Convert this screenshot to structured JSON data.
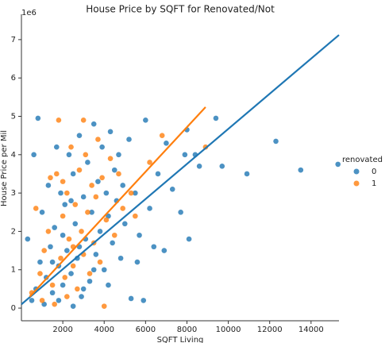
{
  "chart_data": {
    "type": "scatter",
    "title": "House Price by SQFT for Renovated/Not",
    "x_label": "SQFT Living",
    "y_label": "House Price per Mil",
    "y_offset_label": "1e6",
    "legend_title": "renovated",
    "legend_position": "right",
    "xlim": [
      0,
      15350
    ],
    "ylim": [
      -0.33,
      7.66
    ],
    "xticks": [
      2000,
      4000,
      6000,
      8000,
      10000,
      12000,
      14000
    ],
    "yticks": [
      0,
      1,
      2,
      3,
      4,
      5,
      6,
      7
    ],
    "series": [
      {
        "name": "0",
        "color": "#1f77b4",
        "x": [
          500,
          700,
          900,
          1000,
          1200,
          1300,
          1400,
          1500,
          1600,
          1700,
          1800,
          1900,
          2000,
          2100,
          2200,
          2300,
          2400,
          2500,
          2600,
          2700,
          2800,
          2900,
          3000,
          3100,
          3200,
          3300,
          3400,
          3500,
          3600,
          3700,
          3800,
          3900,
          4000,
          4100,
          4200,
          4300,
          4400,
          4500,
          4600,
          4700,
          4800,
          4900,
          5000,
          5200,
          5300,
          5500,
          5700,
          5900,
          6000,
          6200,
          6400,
          6600,
          6900,
          7000,
          7300,
          7700,
          7900,
          8000,
          8100,
          8400,
          8600,
          9400,
          9700,
          10900,
          12300,
          13500,
          15300,
          800,
          600,
          300,
          1100,
          2500,
          1800,
          3000,
          3500,
          2000,
          2400,
          1500,
          2800,
          4200,
          5600
        ],
        "values": [
          0.2,
          0.5,
          1.2,
          2.5,
          0.8,
          3.2,
          1.6,
          0.4,
          2.1,
          4.2,
          1.1,
          3.0,
          0.6,
          2.7,
          1.5,
          4.0,
          0.9,
          3.5,
          2.2,
          1.3,
          4.5,
          0.3,
          2.9,
          1.8,
          3.8,
          0.7,
          2.5,
          4.8,
          1.4,
          3.3,
          2.0,
          4.2,
          1.0,
          3.0,
          2.4,
          4.6,
          1.7,
          3.6,
          2.8,
          4.0,
          1.3,
          3.2,
          2.2,
          4.4,
          0.25,
          3.0,
          1.9,
          0.2,
          4.9,
          2.6,
          1.6,
          3.5,
          1.5,
          4.3,
          3.1,
          2.5,
          4.0,
          4.65,
          1.8,
          4.0,
          3.7,
          4.95,
          3.7,
          3.5,
          4.35,
          3.6,
          3.75,
          4.95,
          4.0,
          1.8,
          0.1,
          0.05,
          0.2,
          0.5,
          1.0,
          1.9,
          2.8,
          1.2,
          1.6,
          0.6,
          1.2
        ],
        "fit": {
          "x": [
            0,
            15350
          ],
          "y": [
            0.1,
            7.12
          ]
        }
      },
      {
        "name": "1",
        "color": "#ff7f0e",
        "x": [
          500,
          700,
          900,
          1100,
          1300,
          1500,
          1700,
          1800,
          1900,
          2000,
          2100,
          2200,
          2300,
          2400,
          2500,
          2600,
          2700,
          2800,
          2900,
          3000,
          3100,
          3200,
          3300,
          3400,
          3500,
          3600,
          3700,
          3800,
          3900,
          4000,
          4100,
          4300,
          4500,
          4700,
          4900,
          5300,
          5500,
          6200,
          6800,
          8900,
          1000,
          1600,
          2200,
          2500,
          1400,
          3000,
          2000
        ],
        "values": [
          0.4,
          2.6,
          0.9,
          1.5,
          2.0,
          0.6,
          3.5,
          4.9,
          1.3,
          2.4,
          0.8,
          3.0,
          1.8,
          4.2,
          1.1,
          2.7,
          0.5,
          3.6,
          2.0,
          1.4,
          4.0,
          2.5,
          0.9,
          3.2,
          1.7,
          2.9,
          4.4,
          1.2,
          3.4,
          0.05,
          2.3,
          3.9,
          1.9,
          3.5,
          2.6,
          3.0,
          2.4,
          3.8,
          4.5,
          4.2,
          0.2,
          0.1,
          0.3,
          1.6,
          3.4,
          4.9,
          3.3
        ],
        "fit": {
          "x": [
            400,
            8900
          ],
          "y": [
            0.3,
            5.24
          ]
        }
      }
    ]
  }
}
